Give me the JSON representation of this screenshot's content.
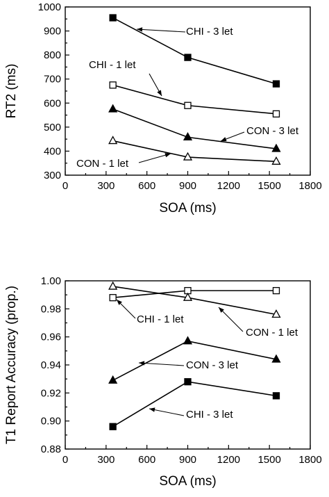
{
  "chart_data": [
    {
      "type": "line",
      "xlabel": "SOA (ms)",
      "ylabel": "RT2 (ms)",
      "xlim": [
        0,
        1800
      ],
      "ylim": [
        300,
        1000
      ],
      "xticks": [
        0,
        300,
        600,
        900,
        1200,
        1500,
        1800
      ],
      "yticks": [
        300,
        400,
        500,
        600,
        700,
        800,
        900,
        1000
      ],
      "x": [
        350,
        900,
        1550
      ],
      "series": [
        {
          "name": "CHI - 3 let",
          "marker": "square-filled",
          "values": [
            955,
            790,
            680
          ]
        },
        {
          "name": "CHI - 1 let",
          "marker": "square-open",
          "values": [
            675,
            590,
            555
          ]
        },
        {
          "name": "CON - 3 let",
          "marker": "triangle-filled",
          "values": [
            575,
            458,
            410
          ]
        },
        {
          "name": "CON - 1 let",
          "marker": "triangle-open",
          "values": [
            443,
            375,
            357
          ]
        }
      ],
      "annotations": [
        {
          "text": "CHI - 3 let",
          "series": 0
        },
        {
          "text": "CHI - 1 let",
          "series": 1
        },
        {
          "text": "CON - 3 let",
          "series": 2
        },
        {
          "text": "CON - 1 let",
          "series": 3
        }
      ]
    },
    {
      "type": "line",
      "xlabel": "SOA (ms)",
      "ylabel": "T1 Report Accuracy (prop.)",
      "xlim": [
        0,
        1800
      ],
      "ylim": [
        0.88,
        1.0
      ],
      "xticks": [
        0,
        300,
        600,
        900,
        1200,
        1500,
        1800
      ],
      "yticks": [
        "0.88",
        "0.90",
        "0.92",
        "0.94",
        "0.96",
        "0.98",
        "1.00"
      ],
      "x": [
        350,
        900,
        1550
      ],
      "series": [
        {
          "name": "CHI - 1 let",
          "marker": "square-open",
          "values": [
            0.988,
            0.993,
            0.993
          ]
        },
        {
          "name": "CON - 1 let",
          "marker": "triangle-open",
          "values": [
            0.996,
            0.988,
            0.976
          ]
        },
        {
          "name": "CON - 3 let",
          "marker": "triangle-filled",
          "values": [
            0.929,
            0.957,
            0.944
          ]
        },
        {
          "name": "CHI - 3 let",
          "marker": "square-filled",
          "values": [
            0.896,
            0.928,
            0.918
          ]
        }
      ],
      "annotations": [
        {
          "text": "CHI - 1 let",
          "series": 0
        },
        {
          "text": "CON - 1 let",
          "series": 1
        },
        {
          "text": "CON - 3 let",
          "series": 2
        },
        {
          "text": "CHI - 3 let",
          "series": 3
        }
      ]
    }
  ]
}
